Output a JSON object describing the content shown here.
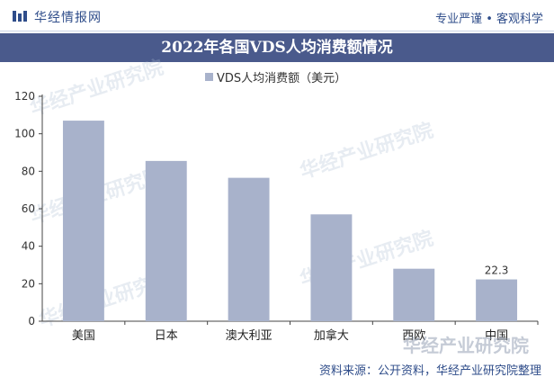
{
  "header": {
    "brand": "华经情报网",
    "slogan": "专业严谨 • 客观科学"
  },
  "watermark_text": "华经产业研究院",
  "source_note": "资料来源：公开资料，华经产业研究院整理",
  "colors": {
    "bar": "#a8b2cb",
    "title_band": "#4a5a8c",
    "brand": "#2f4d8a"
  },
  "chart_data": {
    "type": "bar",
    "title": "2022年各国VDS人均消费额情况",
    "categories": [
      "美国",
      "日本",
      "澳大利亚",
      "加拿大",
      "西欧",
      "中国"
    ],
    "series": [
      {
        "name": "VDS人均消费额（美元）",
        "values": [
          107,
          85.5,
          76.5,
          57,
          28,
          22.3
        ]
      }
    ],
    "data_labels": [
      null,
      null,
      null,
      null,
      null,
      "22.3"
    ],
    "yticks": [
      "0",
      "20",
      "40",
      "60",
      "80",
      "100",
      "120"
    ],
    "ylim": [
      0,
      120
    ],
    "grid": false,
    "legend": "top-center"
  }
}
